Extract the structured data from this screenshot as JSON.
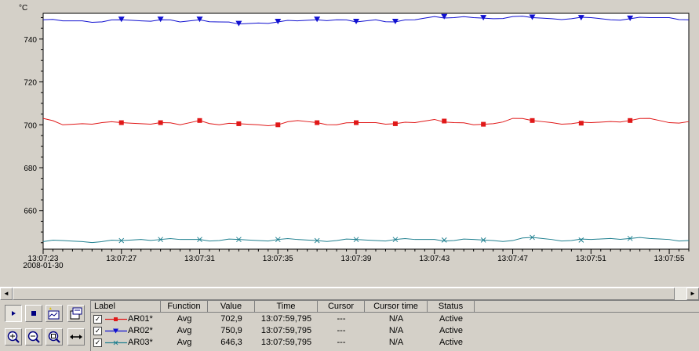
{
  "chart_data": {
    "type": "line",
    "yunit": "°C",
    "ylim": [
      642,
      752
    ],
    "yticks": [
      660,
      680,
      700,
      720,
      740
    ],
    "xlim": [
      "13:07:23",
      "13:07:56"
    ],
    "xticks": [
      "13:07:23",
      "13:07:27",
      "13:07:31",
      "13:07:35",
      "13:07:39",
      "13:07:43",
      "13:07:47",
      "13:07:51",
      "13:07:55"
    ],
    "start_date": "2008-01-30",
    "grid": false,
    "series": [
      {
        "name": "AR01*",
        "color": "#e01818",
        "marker": "square",
        "t": [
          23,
          24,
          25,
          26,
          27,
          28,
          29,
          30,
          31,
          32,
          33,
          34,
          35,
          36,
          37,
          38,
          39,
          40,
          41,
          42,
          43,
          44,
          45,
          46,
          47,
          48,
          49,
          50,
          51,
          52,
          53,
          54,
          55,
          56
        ],
        "values": [
          703,
          700,
          700.5,
          701,
          701,
          700.5,
          701,
          700,
          702,
          700,
          700.5,
          700,
          700,
          702,
          701,
          700,
          701,
          701,
          700.5,
          701,
          702.5,
          701,
          700,
          700.5,
          703,
          702,
          701,
          700.5,
          701,
          701.5,
          702,
          703,
          701,
          701.5
        ]
      },
      {
        "name": "AR02*",
        "color": "#1010d0",
        "marker": "triangle-down",
        "t": [
          23,
          24,
          25,
          26,
          27,
          28,
          29,
          30,
          31,
          32,
          33,
          34,
          35,
          36,
          37,
          38,
          39,
          40,
          41,
          42,
          43,
          44,
          45,
          46,
          47,
          48,
          49,
          50,
          51,
          52,
          53,
          54,
          55,
          56
        ],
        "values": [
          749,
          748.5,
          748.5,
          748,
          749,
          748.5,
          749,
          748,
          749,
          748,
          747,
          747.5,
          748,
          748.5,
          749,
          749,
          748,
          749,
          748,
          749,
          750.5,
          750,
          750,
          749.5,
          750.5,
          750,
          749.5,
          749.5,
          750,
          749,
          749.5,
          750,
          750,
          749
        ]
      },
      {
        "name": "AR03*",
        "color": "#208090",
        "marker": "x",
        "t": [
          23,
          24,
          25,
          26,
          27,
          28,
          29,
          30,
          31,
          32,
          33,
          34,
          35,
          36,
          37,
          38,
          39,
          40,
          41,
          42,
          43,
          44,
          45,
          46,
          47,
          48,
          49,
          50,
          51,
          52,
          53,
          54,
          55,
          56
        ],
        "values": [
          645.5,
          646,
          645.5,
          645.5,
          646,
          646.5,
          646.5,
          646.5,
          646.5,
          646,
          646.5,
          646,
          646.5,
          646.5,
          646,
          646,
          646.5,
          646,
          646.5,
          646.5,
          646.5,
          646,
          646.5,
          646,
          646,
          647.5,
          646.5,
          646,
          646.5,
          647,
          647,
          647,
          646.5,
          646
        ]
      }
    ],
    "marker_t": [
      27,
      29,
      31,
      33,
      35,
      37,
      39,
      41,
      43.5,
      45.5,
      48,
      50.5,
      53
    ]
  },
  "legend": {
    "headers": [
      "Label",
      "Function",
      "Value",
      "Time",
      "Cursor",
      "Cursor time",
      "Status"
    ],
    "rows": [
      {
        "label": "AR01*",
        "function": "Avg",
        "value": "702,9",
        "time": "13:07:59,795",
        "cursor": "---",
        "cursor_time": "N/A",
        "status": "Active",
        "checked": "✓"
      },
      {
        "label": "AR02*",
        "function": "Avg",
        "value": "750,9",
        "time": "13:07:59,795",
        "cursor": "---",
        "cursor_time": "N/A",
        "status": "Active",
        "checked": "✓"
      },
      {
        "label": "AR03*",
        "function": "Avg",
        "value": "646,3",
        "time": "13:07:59,795",
        "cursor": "---",
        "cursor_time": "N/A",
        "status": "Active",
        "checked": "✓"
      }
    ]
  },
  "scrollbar": {
    "left_arrow": "◄",
    "right_arrow": "►"
  },
  "toolbar": {
    "buttons": [
      "play-icon",
      "stop-icon",
      "edit-chart-icon",
      "export-icon",
      "zoom-in-icon",
      "zoom-out-icon",
      "zoom-area-icon",
      "pan-icon"
    ]
  }
}
